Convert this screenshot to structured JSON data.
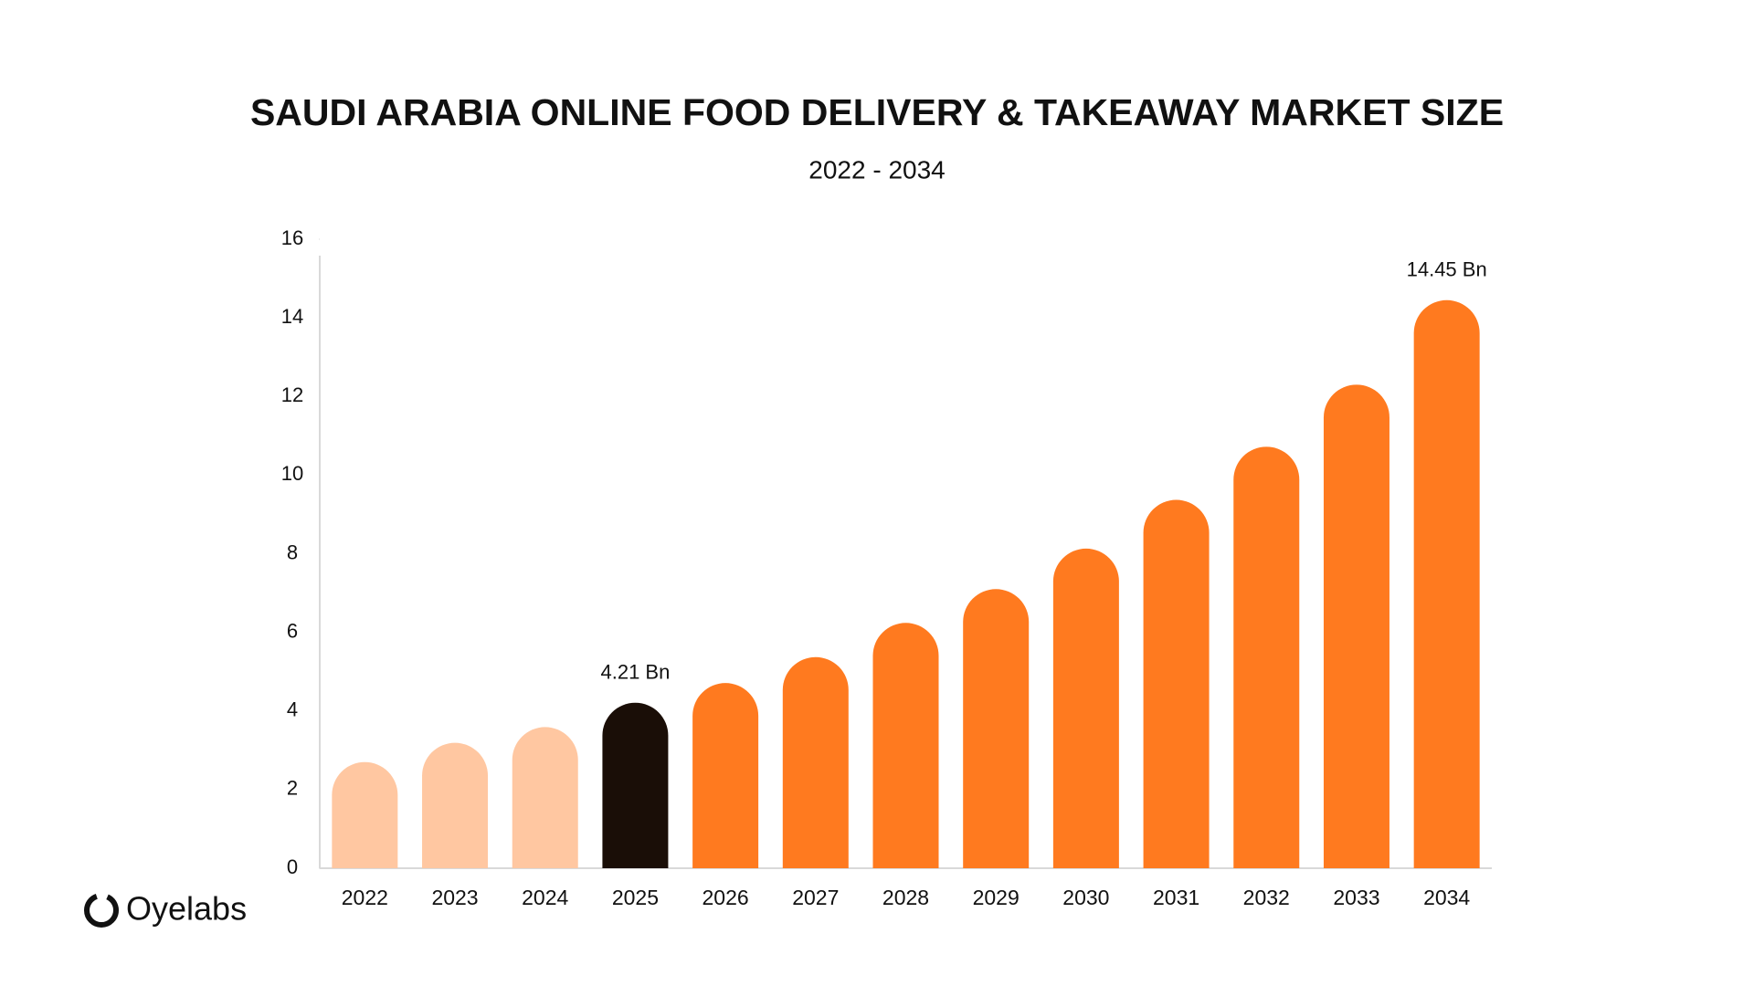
{
  "chart_data": {
    "type": "bar",
    "title": "SAUDI ARABIA ONLINE FOOD DELIVERY & TAKEAWAY MARKET SIZE",
    "subtitle": "2022 - 2034",
    "categories": [
      "2022",
      "2023",
      "2024",
      "2025",
      "2026",
      "2027",
      "2028",
      "2029",
      "2030",
      "2031",
      "2032",
      "2033",
      "2034"
    ],
    "values": [
      2.7,
      3.19,
      3.59,
      4.21,
      4.71,
      5.37,
      6.24,
      7.1,
      8.13,
      9.37,
      10.72,
      12.3,
      14.45
    ],
    "value_labels": [
      null,
      null,
      null,
      "4.21 Bn",
      null,
      null,
      null,
      null,
      null,
      null,
      null,
      null,
      "14.45 Bn"
    ],
    "colors": [
      "#ffc7a1",
      "#ffc7a1",
      "#ffc7a1",
      "#1a0e07",
      "#ff7a1f",
      "#ff7a1f",
      "#ff7a1f",
      "#ff7a1f",
      "#ff7a1f",
      "#ff7a1f",
      "#ff7a1f",
      "#ff7a1f",
      "#ff7a1f"
    ],
    "ylim": [
      0,
      16
    ],
    "yticks": [
      0,
      2,
      4,
      6,
      8,
      10,
      12,
      14,
      16
    ],
    "grid": false
  },
  "logo": "Oyelabs"
}
